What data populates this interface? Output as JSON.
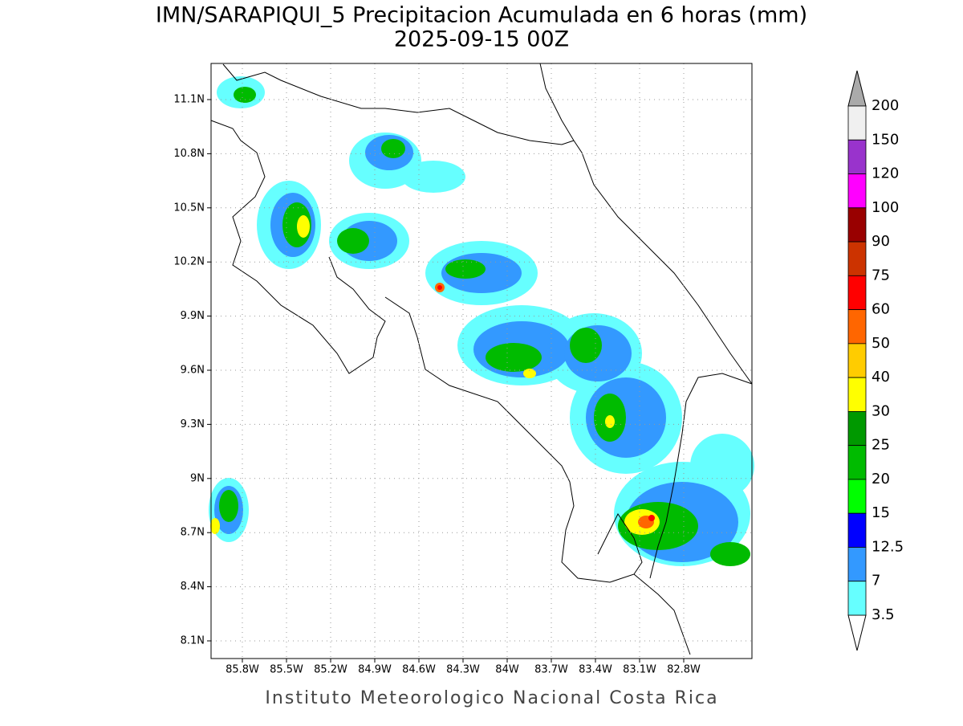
{
  "header": {
    "title": "IMN/SARAPIQUI_5 Precipitacion Acumulada en 6 horas (mm)",
    "subtitle": "2025-09-15 00Z"
  },
  "map": {
    "lat_labels": [
      "11.1N",
      "10.8N",
      "10.5N",
      "10.2N",
      "9.9N",
      "9.6N",
      "9.3N",
      "9N",
      "8.7N",
      "8.4N",
      "8.1N"
    ],
    "lon_labels": [
      "85.8W",
      "85.5W",
      "85.2W",
      "84.9W",
      "84.6W",
      "84.3W",
      "84W",
      "83.7W",
      "83.4W",
      "83.1W",
      "82.8W"
    ]
  },
  "colorbar": {
    "levels": [
      200,
      150,
      120,
      100,
      90,
      75,
      60,
      50,
      40,
      30,
      25,
      20,
      15,
      12.5,
      7,
      3.5
    ],
    "colors": [
      "#f0f0f0",
      "#9933cc",
      "#ff00ff",
      "#990000",
      "#cc3300",
      "#ff0000",
      "#ff6600",
      "#ffcc00",
      "#ffff00",
      "#009900",
      "#00bb00",
      "#00ff00",
      "#0000ff",
      "#3399ff",
      "#66ffff"
    ],
    "over_color": "#aaaaaa",
    "under_color": "#ffffff"
  },
  "footer": {
    "credit": "Instituto Meteorologico Nacional Costa Rica"
  }
}
